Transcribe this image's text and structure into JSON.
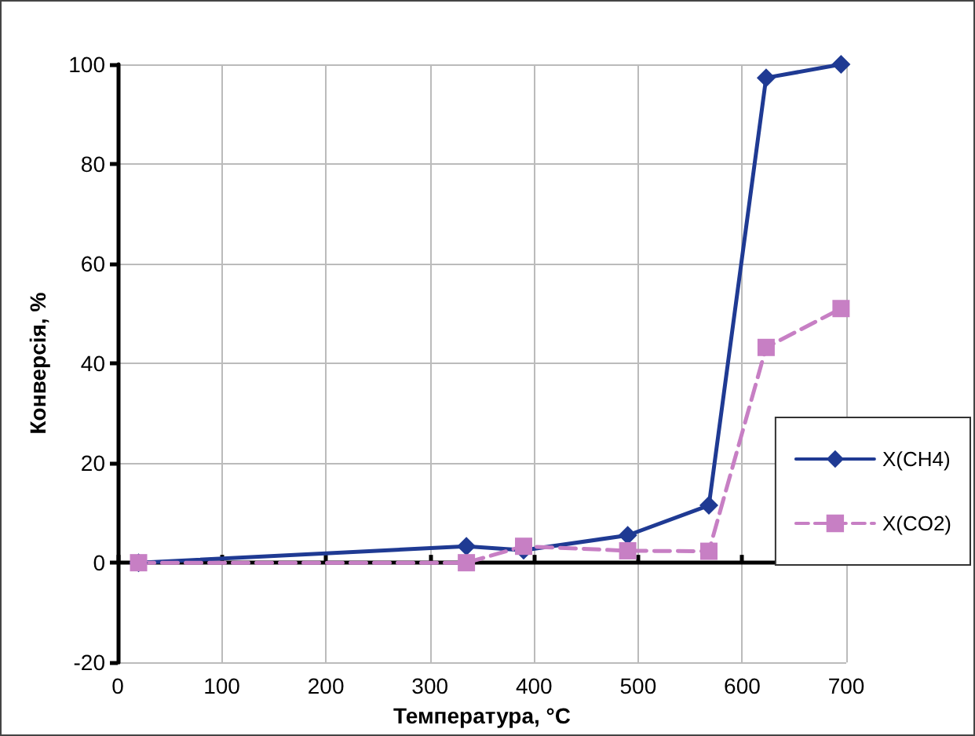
{
  "chart_data": {
    "type": "line",
    "xlabel": "Температура, °C",
    "ylabel": "Конверсія, %",
    "x": [
      20,
      335,
      390,
      490,
      568,
      623,
      695
    ],
    "series": [
      {
        "name": "X(CH4)",
        "color": "#1f3a93",
        "marker": "diamond",
        "line_style": "solid",
        "values": [
          0,
          3.3,
          2.5,
          5.5,
          11.5,
          97.3,
          100
        ]
      },
      {
        "name": "X(CO2)",
        "color": "#c77fc4",
        "marker": "square",
        "line_style": "dashed",
        "values": [
          0,
          0,
          3.3,
          2.4,
          2.3,
          43.2,
          51
        ]
      }
    ],
    "xlim": [
      0,
      700
    ],
    "xticks": [
      0,
      100,
      200,
      300,
      400,
      500,
      600,
      700
    ],
    "ylim": [
      -20,
      100
    ],
    "yticks": [
      -20,
      0,
      20,
      40,
      60,
      80,
      100
    ],
    "grid": true,
    "legend": "right"
  }
}
